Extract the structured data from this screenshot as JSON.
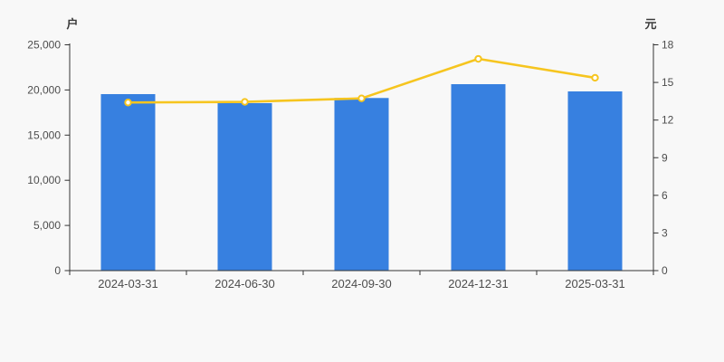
{
  "page": {
    "background": "#f8f8f8",
    "axis_color": "#333333",
    "tick_label_color": "#4d4d4d"
  },
  "chart_data": {
    "type": "bar",
    "subtype": "bar-plus-line-dual-axis",
    "title": "",
    "legend": false,
    "grid": false,
    "categories": [
      "2024-03-31",
      "2024-06-30",
      "2024-09-30",
      "2024-12-31",
      "2025-03-31"
    ],
    "series": [
      {
        "id": "bars",
        "type": "bar",
        "axis": "left",
        "unit": "户",
        "color": "#3780e0",
        "values": [
          19540,
          18540,
          19110,
          20640,
          19840
        ]
      },
      {
        "id": "line",
        "type": "line",
        "axis": "right",
        "unit": "元",
        "color": "#f6c51f",
        "marker": "open-circle",
        "marker_fill": "#ffffff",
        "values": [
          13.4,
          13.45,
          13.73,
          16.88,
          15.37
        ]
      }
    ],
    "left_axis": {
      "label": "户",
      "min": 0,
      "max": 25000,
      "step": 5000,
      "tick_labels": [
        "0",
        "5,000",
        "10,000",
        "15,000",
        "20,000",
        "25,000"
      ]
    },
    "right_axis": {
      "label": "元",
      "min": 0,
      "max": 18,
      "step": 3,
      "tick_labels": [
        "0",
        "3",
        "6",
        "9",
        "12",
        "15",
        "18"
      ]
    }
  }
}
